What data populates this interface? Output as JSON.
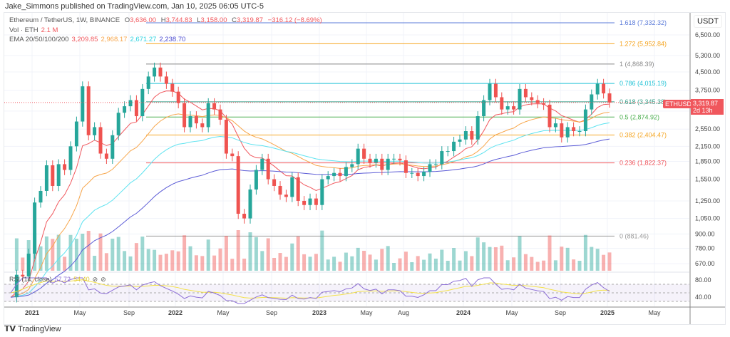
{
  "header": "Jake_Simmons published on TradingView.com, Jan 10, 2025 06:05 UTC-5",
  "legend": {
    "symbol": "Ethereum / TetherUS, 1W, BINANCE",
    "o_label": "O",
    "open": "3,636.00",
    "h_label": "H",
    "high": "3,744.83",
    "l_label": "L",
    "low": "3,158.00",
    "c_label": "C",
    "close": "3,319.87",
    "change": "−316.12 (−8.69%)",
    "vol_label": "Vol · ETH",
    "vol": "2.1 M",
    "ema_label": "EMA 20/50/100/200",
    "ema": [
      "3,209.85",
      "2,968.17",
      "2,671.27",
      "2,238.70"
    ]
  },
  "rsi": {
    "label": "RSI (14, close)",
    "value": "57.72",
    "ma_value": "54.40",
    "ticks": [
      "80.00",
      "40.00"
    ]
  },
  "price_tag": {
    "symbol": "ETHUSDT",
    "price": "3,319.87",
    "countdown": "2d 13h"
  },
  "axis_unit": "USDT",
  "footer": "TradingView",
  "colors": {
    "up": "#26a69a",
    "down": "#ef5350",
    "ema20": "#f0575d",
    "ema50": "#f7a64b",
    "ema100": "#5ee3f0",
    "ema200": "#5b5bd6",
    "rsi": "#8d6fd6",
    "rsi_ma": "#f3e14b"
  },
  "chart_data": {
    "type": "candlestick",
    "symbol": "ETHUSDT",
    "interval": "1W",
    "scale": "log",
    "y_ticks": [
      6500,
      5300,
      4500,
      3750,
      3050,
      2550,
      2150,
      1850,
      1550,
      1250,
      1050,
      900,
      780,
      670
    ],
    "y_tick_labels": [
      "6,500.00",
      "5,300.00",
      "4,500.00",
      "3,750.00",
      "",
      "2,550.00",
      "2,150.00",
      "1,850.00",
      "1,550.00",
      "1,250.00",
      "1,050.00",
      "900.00",
      "780.00",
      "670.00"
    ],
    "x_tick_labels": [
      "2021",
      "May",
      "Sep",
      "2022",
      "May",
      "Sep",
      "2023",
      "May",
      "Aug",
      "2024",
      "May",
      "Sep",
      "2025",
      "May"
    ],
    "closes": [
      480,
      600,
      590,
      740,
      1230,
      1380,
      1780,
      1450,
      1800,
      1700,
      2150,
      2750,
      3900,
      2400,
      2600,
      2000,
      1900,
      2400,
      3000,
      3200,
      3400,
      2900,
      3800,
      4300,
      4700,
      4300,
      4000,
      3700,
      3300,
      2600,
      2900,
      2700,
      2600,
      3300,
      3100,
      2800,
      2000,
      1950,
      1100,
      1050,
      1400,
      1700,
      1900,
      1550,
      1450,
      1330,
      1300,
      1580,
      1250,
      1200,
      1280,
      1200,
      1550,
      1600,
      1650,
      1600,
      1750,
      1800,
      2100,
      1900,
      1830,
      1900,
      1700,
      1900,
      1900,
      1870,
      1650,
      1650,
      1600,
      1670,
      1800,
      1800,
      2050,
      2050,
      2250,
      2300,
      2500,
      2300,
      2900,
      3400,
      4000,
      3500,
      3100,
      3200,
      3100,
      3800,
      3500,
      3400,
      3300,
      3250,
      2600,
      2700,
      2350,
      2600,
      2500,
      2500,
      3100,
      3600,
      4000,
      3636,
      3319.87
    ],
    "fib_levels": [
      {
        "ratio": "1.618",
        "price": "7,332.32",
        "value": 7332.32,
        "color": "#5b7bd9"
      },
      {
        "ratio": "1.272",
        "price": "5,952.84",
        "value": 5952.84,
        "color": "#f5a623"
      },
      {
        "ratio": "1",
        "price": "4,868.39",
        "value": 4868.39,
        "color": "#888888"
      },
      {
        "ratio": "0.786",
        "price": "4,015.19",
        "value": 4015.19,
        "color": "#22c3d6"
      },
      {
        "ratio": "0.618",
        "price": "3,345.38",
        "value": 3345.38,
        "color": "#3a9f8a"
      },
      {
        "ratio": "0.5",
        "price": "2,874.92",
        "value": 2874.92,
        "color": "#4caf50"
      },
      {
        "ratio": "0.382",
        "price": "2,404.47",
        "value": 2404.47,
        "color": "#f5a623"
      },
      {
        "ratio": "0.236",
        "price": "1,822.37",
        "value": 1822.37,
        "color": "#f0575d"
      },
      {
        "ratio": "0",
        "price": "881.46",
        "value": 881.46,
        "color": "#999999"
      }
    ]
  }
}
